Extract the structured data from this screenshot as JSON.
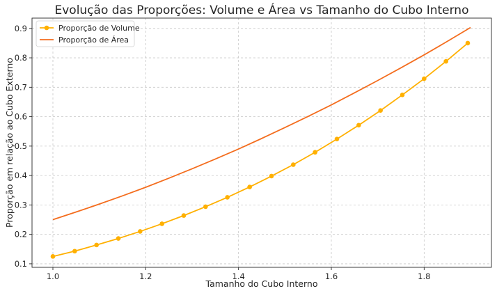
{
  "chart_data": {
    "type": "line",
    "title": "Evolução das Proporções: Volume e Área vs Tamanho do Cubo Interno",
    "xlabel": "Tamanho do Cubo Interno",
    "ylabel": "Proporção em relação ao Cubo Externo",
    "xlim": [
      0.955,
      1.945
    ],
    "ylim": [
      0.088,
      0.935
    ],
    "xticks": [
      1.0,
      1.2,
      1.4,
      1.6,
      1.8
    ],
    "xtick_labels": [
      "1.0",
      "1.2",
      "1.4",
      "1.6",
      "1.8"
    ],
    "yticks": [
      0.1,
      0.2,
      0.3,
      0.4,
      0.5,
      0.6,
      0.7,
      0.8,
      0.9
    ],
    "ytick_labels": [
      "0.1",
      "0.2",
      "0.3",
      "0.4",
      "0.5",
      "0.6",
      "0.7",
      "0.8",
      "0.9"
    ],
    "grid": true,
    "legend_position": "top-left",
    "series": [
      {
        "name": "Proporção de Volume",
        "color": "#ffb000",
        "marker": "circle",
        "x": [
          1.0,
          1.047,
          1.094,
          1.141,
          1.188,
          1.235,
          1.282,
          1.329,
          1.376,
          1.424,
          1.471,
          1.518,
          1.565,
          1.612,
          1.659,
          1.706,
          1.753,
          1.8,
          1.847,
          1.894
        ],
        "y": [
          0.125,
          0.143,
          0.164,
          0.186,
          0.21,
          0.236,
          0.264,
          0.294,
          0.326,
          0.361,
          0.398,
          0.437,
          0.479,
          0.524,
          0.571,
          0.621,
          0.674,
          0.729,
          0.788,
          0.85
        ]
      },
      {
        "name": "Proporção de Área",
        "color": "#f46d1e",
        "marker": "none",
        "x": [
          1.0,
          1.05,
          1.1,
          1.15,
          1.2,
          1.25,
          1.3,
          1.35,
          1.4,
          1.45,
          1.5,
          1.55,
          1.6,
          1.65,
          1.7,
          1.75,
          1.8,
          1.85,
          1.9
        ],
        "y": [
          0.25,
          0.276,
          0.303,
          0.331,
          0.36,
          0.391,
          0.423,
          0.456,
          0.49,
          0.526,
          0.563,
          0.601,
          0.64,
          0.681,
          0.723,
          0.766,
          0.81,
          0.856,
          0.903
        ]
      }
    ]
  }
}
